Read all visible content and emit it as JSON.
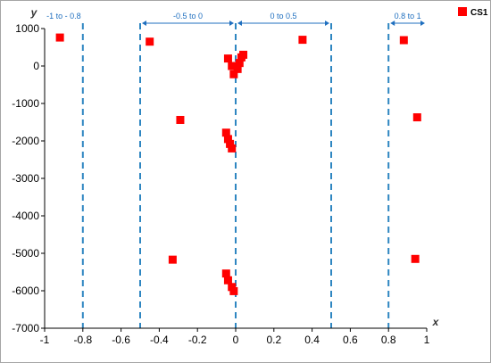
{
  "chart_data": {
    "type": "scatter",
    "xlabel": "x",
    "ylabel": "y",
    "xlim": [
      -1,
      1
    ],
    "ylim": [
      -7000,
      1000
    ],
    "x_ticks": [
      "-1",
      "-0.8",
      "-0.6",
      "-0.4",
      "-0.2",
      "0",
      "0.2",
      "0.4",
      "0.6",
      "0.8",
      "1"
    ],
    "y_ticks": [
      "1000",
      "0",
      "-1000",
      "-2000",
      "-3000",
      "-4000",
      "-5000",
      "-6000",
      "-7000"
    ],
    "grid": false,
    "legend_position": "top-right",
    "series": [
      {
        "name": "CS1",
        "color": "#ff0000",
        "points": [
          {
            "x": -0.92,
            "y": 760
          },
          {
            "x": -0.45,
            "y": 650
          },
          {
            "x": -0.29,
            "y": -1440
          },
          {
            "x": -0.33,
            "y": -5170
          },
          {
            "x": -0.04,
            "y": 200
          },
          {
            "x": -0.02,
            "y": 0
          },
          {
            "x": -0.01,
            "y": -220
          },
          {
            "x": 0.01,
            "y": -80
          },
          {
            "x": 0.02,
            "y": 80
          },
          {
            "x": 0.03,
            "y": 230
          },
          {
            "x": 0.04,
            "y": 300
          },
          {
            "x": -0.05,
            "y": -1780
          },
          {
            "x": -0.04,
            "y": -1950
          },
          {
            "x": -0.03,
            "y": -2080
          },
          {
            "x": -0.02,
            "y": -2200
          },
          {
            "x": -0.05,
            "y": -5540
          },
          {
            "x": -0.04,
            "y": -5720
          },
          {
            "x": -0.02,
            "y": -5900
          },
          {
            "x": -0.01,
            "y": -6010
          },
          {
            "x": 0.35,
            "y": 700
          },
          {
            "x": 0.88,
            "y": 690
          },
          {
            "x": 0.95,
            "y": -1370
          },
          {
            "x": 0.94,
            "y": -5150
          }
        ]
      }
    ],
    "reference_lines": [
      {
        "axis": "x",
        "value": -0.8,
        "style": "dashed"
      },
      {
        "axis": "x",
        "value": -0.5,
        "style": "dashed"
      },
      {
        "axis": "x",
        "value": 0,
        "style": "dashed"
      },
      {
        "axis": "x",
        "value": 0.5,
        "style": "dashed"
      },
      {
        "axis": "x",
        "value": 0.8,
        "style": "dashed"
      }
    ],
    "range_annotations": [
      {
        "label": "-1 to - 0.8",
        "from": -1,
        "to": -0.8,
        "arrows": false
      },
      {
        "label": "-0.5 to 0",
        "from": -0.5,
        "to": 0,
        "arrows": true
      },
      {
        "label": "0 to 0.5",
        "from": 0,
        "to": 0.5,
        "arrows": true
      },
      {
        "label": "0.8 to 1",
        "from": 0.8,
        "to": 1,
        "arrows": true
      }
    ],
    "colors": {
      "marker": "#ff0000",
      "reference_line": "#2e86c1",
      "annotation": "#1f6fbf",
      "axis": "#000000"
    }
  }
}
